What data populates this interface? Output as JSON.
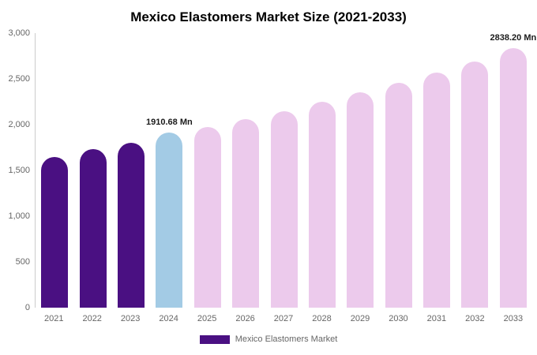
{
  "chart_data": {
    "type": "bar",
    "title": "Mexico Elastomers Market Size (2021-2033)",
    "categories": [
      "2021",
      "2022",
      "2023",
      "2024",
      "2025",
      "2026",
      "2027",
      "2028",
      "2029",
      "2030",
      "2031",
      "2032",
      "2033"
    ],
    "values": [
      1650,
      1730,
      1800,
      1910.68,
      1975,
      2060,
      2150,
      2250,
      2350,
      2460,
      2570,
      2690,
      2838.2
    ],
    "ylim": [
      0,
      3000
    ],
    "y_ticks": [
      "0",
      "500",
      "1,000",
      "1,500",
      "2,000",
      "2,500",
      "3,000"
    ],
    "xlabel": "",
    "ylabel": "",
    "grid": false,
    "legend_position": "bottom",
    "colors": {
      "historical": "#4a1082",
      "current": "#a3cbe5",
      "forecast": "#eccaec"
    },
    "bar_colors": [
      "#4a1082",
      "#4a1082",
      "#4a1082",
      "#a3cbe5",
      "#eccaec",
      "#eccaec",
      "#eccaec",
      "#eccaec",
      "#eccaec",
      "#eccaec",
      "#eccaec",
      "#eccaec",
      "#eccaec"
    ],
    "annotations": [
      {
        "category": "2024",
        "text": "1910.68 Mn"
      },
      {
        "category": "2033",
        "text": "2838.20 Mn"
      }
    ],
    "legend": [
      {
        "label": "Mexico Elastomers Market",
        "color": "#4a1082"
      }
    ]
  }
}
